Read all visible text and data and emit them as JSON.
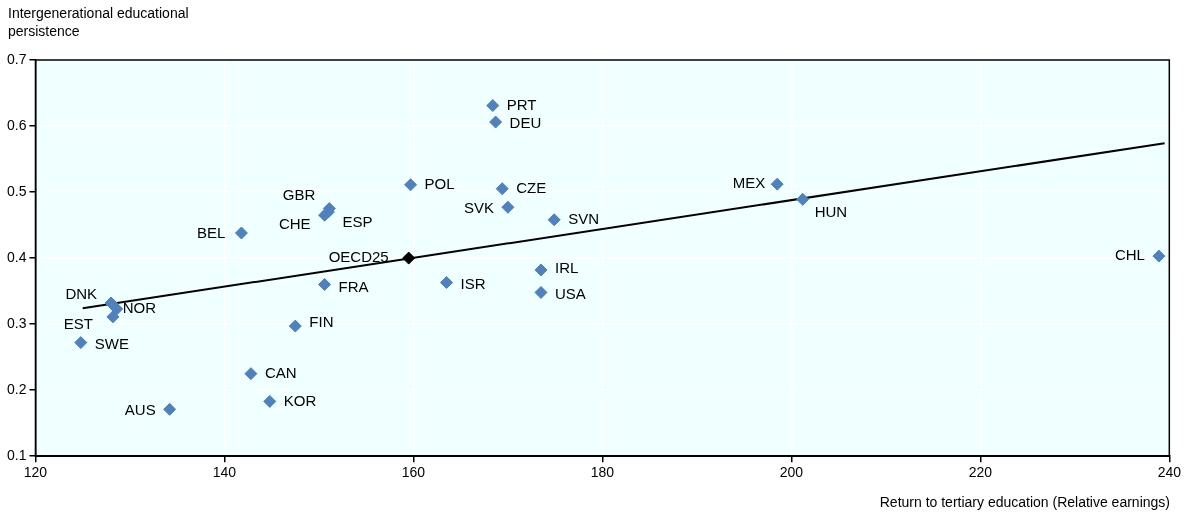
{
  "chart_data": {
    "type": "scatter",
    "ylabel": "Intergenerational educational persistence",
    "xlabel": "Return to tertiary education (Relative earnings)",
    "xlim": [
      120,
      240
    ],
    "xticks": [
      120,
      140,
      160,
      180,
      200,
      220,
      240
    ],
    "ylim": [
      0.1,
      0.7
    ],
    "yticks": [
      0.1,
      0.2,
      0.3,
      0.4,
      0.5,
      0.6,
      0.7
    ],
    "grid": true,
    "legend": false,
    "marker": "diamond",
    "series": [
      {
        "color": "#4f81bd",
        "x": [
          168.4,
          168.7,
          159.7,
          169.4,
          170.0,
          174.9,
          198.5,
          201.2,
          238.9,
          173.5,
          173.5,
          163.5,
          150.6,
          151.1,
          151.0,
          150.6,
          141.8,
          128.0,
          128.6,
          128.2,
          124.8,
          147.5,
          142.8,
          144.8,
          134.2
        ],
        "values": [
          0.631,
          0.606,
          0.511,
          0.505,
          0.477,
          0.458,
          0.512,
          0.489,
          0.403,
          0.382,
          0.348,
          0.363,
          0.36,
          0.475,
          0.47,
          0.465,
          0.438,
          0.332,
          0.323,
          0.311,
          0.272,
          0.297,
          0.225,
          0.183,
          0.171
        ]
      },
      {
        "color": "#000000",
        "x": [
          159.5
        ],
        "values": [
          0.4
        ]
      },
      {
        "type": "line",
        "color": "#000000",
        "x": [
          125,
          239.5
        ],
        "values": [
          0.324,
          0.574
        ],
        "marker": "none"
      }
    ],
    "annotations": [
      {
        "text": "PRT",
        "x": 168.4,
        "y": 0.631
      },
      {
        "text": "DEU",
        "x": 168.7,
        "y": 0.606
      },
      {
        "text": "POL",
        "x": 159.7,
        "y": 0.511
      },
      {
        "text": "CZE",
        "x": 169.4,
        "y": 0.505
      },
      {
        "text": "SVK",
        "x": 170.0,
        "y": 0.477
      },
      {
        "text": "SVN",
        "x": 174.9,
        "y": 0.458
      },
      {
        "text": "MEX",
        "x": 198.5,
        "y": 0.512
      },
      {
        "text": "HUN",
        "x": 201.2,
        "y": 0.489
      },
      {
        "text": "CHL",
        "x": 238.9,
        "y": 0.403
      },
      {
        "text": "IRL",
        "x": 173.5,
        "y": 0.382
      },
      {
        "text": "USA",
        "x": 173.5,
        "y": 0.348
      },
      {
        "text": "ISR",
        "x": 163.5,
        "y": 0.363
      },
      {
        "text": "FRA",
        "x": 150.6,
        "y": 0.36
      },
      {
        "text": "GBR",
        "x": 151.1,
        "y": 0.475
      },
      {
        "text": "ESP",
        "x": 151.0,
        "y": 0.47
      },
      {
        "text": "CHE",
        "x": 150.6,
        "y": 0.465
      },
      {
        "text": "BEL",
        "x": 141.8,
        "y": 0.438
      },
      {
        "text": "DNK",
        "x": 128.0,
        "y": 0.332
      },
      {
        "text": "NOR",
        "x": 128.6,
        "y": 0.323
      },
      {
        "text": "EST",
        "x": 128.2,
        "y": 0.311
      },
      {
        "text": "SWE",
        "x": 124.8,
        "y": 0.272
      },
      {
        "text": "FIN",
        "x": 147.5,
        "y": 0.297
      },
      {
        "text": "CAN",
        "x": 142.8,
        "y": 0.225
      },
      {
        "text": "KOR",
        "x": 144.8,
        "y": 0.183
      },
      {
        "text": "AUS",
        "x": 134.2,
        "y": 0.171
      },
      {
        "text": "OECD25",
        "x": 159.5,
        "y": 0.4
      }
    ]
  }
}
